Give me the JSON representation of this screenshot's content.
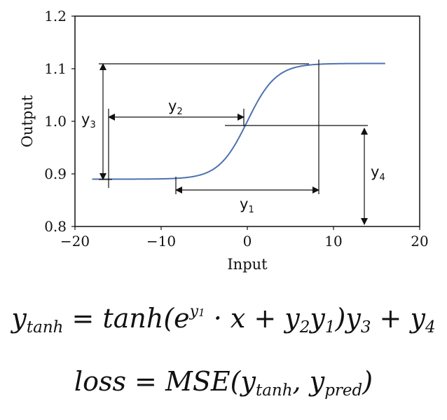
{
  "chart_data": {
    "type": "line",
    "title": "",
    "xlabel": "Input",
    "ylabel": "Output",
    "xlim": [
      -20,
      20
    ],
    "ylim": [
      0.8,
      1.2
    ],
    "xticks": [
      "−20",
      "−10",
      "0",
      "10",
      "20"
    ],
    "yticks": [
      "0.8",
      "0.9",
      "1.0",
      "1.1",
      "1.2"
    ],
    "grid": false,
    "line_color": "#4c72b0",
    "curve": {
      "x_range": [
        -18,
        16
      ],
      "low": 0.89,
      "high": 1.11,
      "center_x": 0,
      "center_y": 1.0,
      "slope_factor": 0.3
    },
    "annotations": [
      {
        "label": "y",
        "subscript": "1"
      },
      {
        "label": "y",
        "subscript": "2"
      },
      {
        "label": "y",
        "subscript": "3"
      },
      {
        "label": "y",
        "subscript": "4"
      }
    ]
  },
  "formulas": {
    "line1": {
      "lhs": "y",
      "lhs_sub": "tanh",
      "eq": " = ",
      "fn": "tanh(e",
      "exp_base": "y",
      "exp_sub": "1",
      "mid": " · x + y",
      "y2_sub": "2",
      "y1": "y",
      "y1_sub": "1",
      "close": ")y",
      "y3_sub": "3",
      "plus": " + y",
      "y4_sub": "4"
    },
    "line2": {
      "lhs": "loss",
      "eq": " = ",
      "fn": "MSE(y",
      "a_sub": "tanh",
      "comma": ", y",
      "b_sub": "pred",
      "close": ")"
    }
  }
}
